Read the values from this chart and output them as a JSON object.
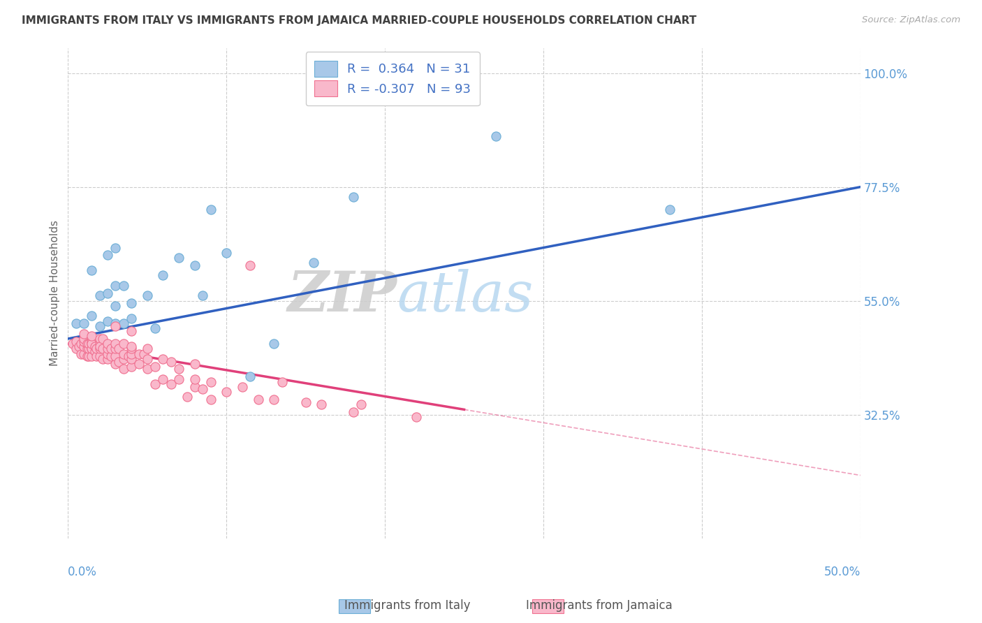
{
  "title": "IMMIGRANTS FROM ITALY VS IMMIGRANTS FROM JAMAICA MARRIED-COUPLE HOUSEHOLDS CORRELATION CHART",
  "source": "Source: ZipAtlas.com",
  "ylabel": "Married-couple Households",
  "xmin": 0.0,
  "xmax": 0.5,
  "ymin": 0.08,
  "ymax": 1.05,
  "italy_color": "#a8c8e8",
  "italy_edge_color": "#6baed6",
  "jamaica_color": "#f9b8cb",
  "jamaica_edge_color": "#f07090",
  "italy_R": 0.364,
  "italy_N": 31,
  "jamaica_R": -0.307,
  "jamaica_N": 93,
  "italy_line_color": "#3060c0",
  "jamaica_line_color": "#e0407a",
  "watermark_zip": "ZIP",
  "watermark_atlas": "atlas",
  "background_color": "#ffffff",
  "grid_color": "#cccccc",
  "axis_color": "#5b9bd5",
  "title_color": "#404040",
  "legend_color": "#4472c4",
  "italy_line_x0": 0.0,
  "italy_line_y0": 0.475,
  "italy_line_x1": 0.5,
  "italy_line_y1": 0.775,
  "jamaica_line_x0": 0.0,
  "jamaica_line_y0": 0.465,
  "jamaica_line_xsolid": 0.25,
  "jamaica_line_ysolid": 0.335,
  "jamaica_line_x1": 0.5,
  "jamaica_line_y1": 0.205,
  "italy_scatter_x": [
    0.005,
    0.01,
    0.015,
    0.015,
    0.02,
    0.02,
    0.025,
    0.025,
    0.025,
    0.03,
    0.03,
    0.03,
    0.03,
    0.035,
    0.035,
    0.04,
    0.04,
    0.05,
    0.055,
    0.06,
    0.07,
    0.08,
    0.085,
    0.09,
    0.1,
    0.115,
    0.13,
    0.155,
    0.18,
    0.27,
    0.38
  ],
  "italy_scatter_y": [
    0.505,
    0.505,
    0.52,
    0.61,
    0.5,
    0.56,
    0.51,
    0.565,
    0.64,
    0.505,
    0.54,
    0.58,
    0.655,
    0.505,
    0.58,
    0.515,
    0.545,
    0.56,
    0.495,
    0.6,
    0.635,
    0.62,
    0.56,
    0.73,
    0.645,
    0.4,
    0.465,
    0.625,
    0.755,
    0.875,
    0.73
  ],
  "jamaica_scatter_x": [
    0.003,
    0.005,
    0.005,
    0.007,
    0.008,
    0.008,
    0.01,
    0.01,
    0.01,
    0.01,
    0.01,
    0.012,
    0.012,
    0.012,
    0.013,
    0.013,
    0.013,
    0.015,
    0.015,
    0.015,
    0.015,
    0.015,
    0.015,
    0.015,
    0.015,
    0.017,
    0.017,
    0.018,
    0.018,
    0.02,
    0.02,
    0.02,
    0.02,
    0.02,
    0.022,
    0.022,
    0.022,
    0.025,
    0.025,
    0.025,
    0.025,
    0.027,
    0.027,
    0.03,
    0.03,
    0.03,
    0.03,
    0.03,
    0.032,
    0.032,
    0.035,
    0.035,
    0.035,
    0.035,
    0.038,
    0.04,
    0.04,
    0.04,
    0.04,
    0.04,
    0.04,
    0.045,
    0.045,
    0.048,
    0.05,
    0.05,
    0.05,
    0.055,
    0.055,
    0.06,
    0.06,
    0.065,
    0.065,
    0.07,
    0.07,
    0.075,
    0.08,
    0.08,
    0.08,
    0.085,
    0.09,
    0.09,
    0.1,
    0.11,
    0.115,
    0.12,
    0.13,
    0.135,
    0.15,
    0.16,
    0.18,
    0.185,
    0.22
  ],
  "jamaica_scatter_y": [
    0.465,
    0.455,
    0.47,
    0.46,
    0.445,
    0.465,
    0.445,
    0.46,
    0.47,
    0.475,
    0.485,
    0.44,
    0.455,
    0.465,
    0.44,
    0.455,
    0.465,
    0.44,
    0.455,
    0.465,
    0.475,
    0.455,
    0.47,
    0.465,
    0.48,
    0.45,
    0.46,
    0.44,
    0.455,
    0.44,
    0.455,
    0.465,
    0.475,
    0.46,
    0.435,
    0.455,
    0.475,
    0.435,
    0.445,
    0.455,
    0.465,
    0.44,
    0.455,
    0.425,
    0.44,
    0.455,
    0.465,
    0.5,
    0.43,
    0.455,
    0.415,
    0.435,
    0.445,
    0.465,
    0.44,
    0.42,
    0.435,
    0.445,
    0.455,
    0.46,
    0.49,
    0.425,
    0.445,
    0.445,
    0.415,
    0.435,
    0.455,
    0.385,
    0.42,
    0.395,
    0.435,
    0.385,
    0.43,
    0.395,
    0.415,
    0.36,
    0.38,
    0.395,
    0.425,
    0.375,
    0.355,
    0.39,
    0.37,
    0.38,
    0.62,
    0.355,
    0.355,
    0.39,
    0.35,
    0.345,
    0.33,
    0.345,
    0.32
  ]
}
